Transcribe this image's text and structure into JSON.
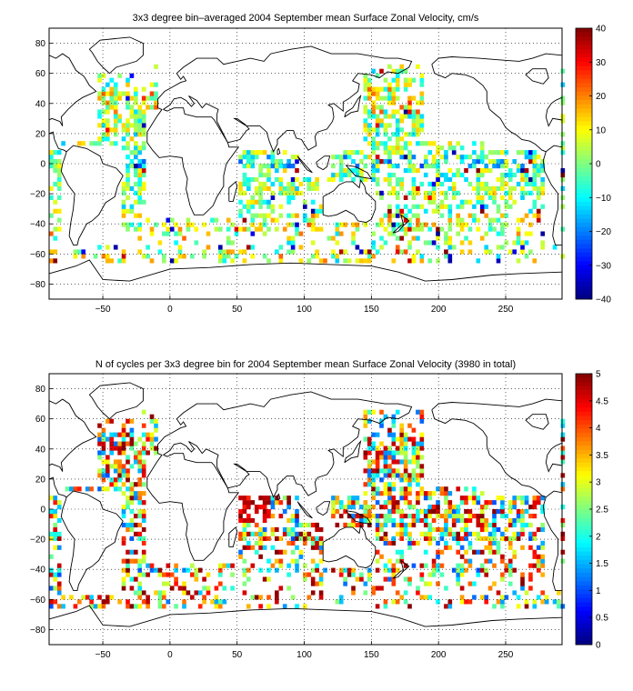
{
  "chart_data": [
    {
      "type": "heatmap",
      "title": "3x3 degree bin–averaged 2004 September mean Surface Zonal Velocity, cm/s",
      "xlabel": "",
      "ylabel": "",
      "xlim": [
        -90,
        292
      ],
      "ylim": [
        -90,
        90
      ],
      "x_ticks": [
        -50,
        0,
        50,
        100,
        150,
        200,
        250
      ],
      "x_tick_labels": [
        "−50",
        "0",
        "50",
        "100",
        "150",
        "200",
        "250"
      ],
      "y_ticks": [
        80,
        60,
        40,
        20,
        0,
        -20,
        -40,
        -60,
        -80
      ],
      "y_tick_labels": [
        "80",
        "60",
        "40",
        "20",
        "0",
        "−20",
        "−40",
        "−60",
        "−80"
      ],
      "colorbar": {
        "min": -40,
        "max": 40,
        "ticks": [
          40,
          30,
          20,
          10,
          0,
          -10,
          -20,
          -30,
          -40
        ],
        "tick_labels": [
          "40",
          "30",
          "20",
          "10",
          "0",
          "−10",
          "−20",
          "−30",
          "−40"
        ]
      },
      "grid": true,
      "bin_size_deg": 3,
      "data_note_seed": 7
    },
    {
      "type": "heatmap",
      "title": "N of cycles per 3x3 degree bin for 2004 September mean Surface Zonal Velocity (3980 in total)",
      "xlabel": "",
      "ylabel": "",
      "xlim": [
        -90,
        292
      ],
      "ylim": [
        -90,
        90
      ],
      "x_ticks": [
        -50,
        0,
        50,
        100,
        150,
        200,
        250
      ],
      "x_tick_labels": [
        "−50",
        "0",
        "50",
        "100",
        "150",
        "200",
        "250"
      ],
      "y_ticks": [
        80,
        60,
        40,
        20,
        0,
        -20,
        -40,
        -60,
        -80
      ],
      "y_tick_labels": [
        "80",
        "60",
        "40",
        "20",
        "0",
        "−20",
        "−40",
        "−60",
        "−80"
      ],
      "colorbar": {
        "min": 0,
        "max": 5,
        "ticks": [
          5,
          4.5,
          4,
          3.5,
          3,
          2.5,
          2,
          1.5,
          1,
          0.5,
          0
        ],
        "tick_labels": [
          "5",
          "4.5",
          "4",
          "3.5",
          "3",
          "2.5",
          "2",
          "1.5",
          "1",
          "0.5",
          "0"
        ]
      },
      "grid": true,
      "bin_size_deg": 3,
      "data_note_seed": 19
    }
  ]
}
